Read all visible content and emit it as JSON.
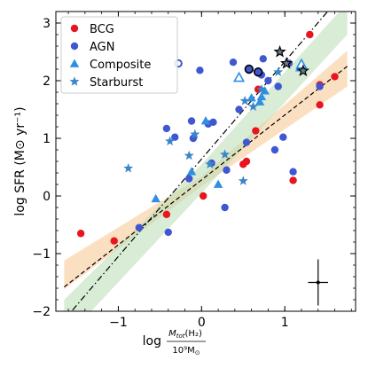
{
  "chart_data": {
    "type": "scatter",
    "xlabel_main": "log",
    "xlabel_num": "M",
    "xlabel_num_sub": "tot",
    "xlabel_num_paren": "(H₂)",
    "xlabel_den": "10⁹M",
    "xlabel_den_sub": "⊙",
    "ylabel": "log SFR (M⊙ yr⁻¹)",
    "xlim": [
      -1.75,
      1.85
    ],
    "ylim": [
      -2.0,
      3.2
    ],
    "xticks": [
      -1,
      0,
      1
    ],
    "yticks": [
      -2,
      -1,
      0,
      1,
      2,
      3
    ],
    "xtick_labels": [
      "−1",
      "0",
      "1"
    ],
    "ytick_labels": [
      "−2",
      "−1",
      "0",
      "1",
      "2",
      "3"
    ],
    "colors": {
      "bcg": "#e8141e",
      "agn": "#3f57d1",
      "composite": "#2f8fe3",
      "starburst": "#3b86c9",
      "fit_orange": "#f7c48e",
      "fit_green": "#b8dcb4"
    },
    "legend": [
      {
        "label": "BCG",
        "marker": "circle",
        "color": "#e8141e"
      },
      {
        "label": "AGN",
        "marker": "circle",
        "color": "#3f57d1"
      },
      {
        "label": "Composite",
        "marker": "triangle",
        "color": "#2f8fe3"
      },
      {
        "label": "Starburst",
        "marker": "star",
        "color": "#3b86c9"
      }
    ],
    "fits": [
      {
        "style": "dashed",
        "x": [
          -1.65,
          1.75
        ],
        "y": [
          -1.58,
          2.25
        ],
        "band_color": "#f7c48e",
        "band_lower": [
          -1.62,
          0.17,
          1.9
        ],
        "band_upper": [
          -1.12,
          0.34,
          2.52
        ],
        "band_x": [
          -1.65,
          0.0,
          1.75
        ]
      },
      {
        "style": "dashdot",
        "x": [
          -1.65,
          1.75
        ],
        "y": [
          -2.15,
          3.6
        ],
        "band_color": "#b8dcb4",
        "band_lower": [
          -2.5,
          0.05,
          2.8
        ],
        "band_upper": [
          -1.8,
          0.55,
          3.35
        ],
        "band_x": [
          -1.65,
          0.0,
          1.75
        ]
      }
    ],
    "series": [
      {
        "name": "BCG",
        "marker": "circle",
        "color": "#e8141e",
        "points": [
          [
            -1.45,
            -0.65
          ],
          [
            -1.05,
            -0.78
          ],
          [
            -0.42,
            -0.32
          ],
          [
            0.02,
            0.0
          ],
          [
            0.5,
            0.55
          ],
          [
            0.54,
            0.6
          ],
          [
            0.65,
            1.13
          ],
          [
            0.68,
            1.85
          ],
          [
            1.1,
            0.27
          ],
          [
            1.3,
            2.8
          ],
          [
            1.42,
            1.93
          ],
          [
            1.42,
            1.58
          ],
          [
            1.6,
            2.07
          ]
        ]
      },
      {
        "name": "AGN",
        "marker": "circle",
        "color": "#3f57d1",
        "points": [
          [
            -0.75,
            -0.55
          ],
          [
            -0.42,
            1.17
          ],
          [
            -0.4,
            -0.63
          ],
          [
            -0.32,
            1.02
          ],
          [
            -0.15,
            0.3
          ],
          [
            -0.12,
            1.3
          ],
          [
            -0.1,
            1.0
          ],
          [
            -0.02,
            2.18
          ],
          [
            0.08,
            1.25
          ],
          [
            0.12,
            0.57
          ],
          [
            0.14,
            1.28
          ],
          [
            0.28,
            -0.2
          ],
          [
            0.3,
            0.45
          ],
          [
            0.38,
            2.32
          ],
          [
            0.45,
            1.5
          ],
          [
            0.72,
            2.1
          ],
          [
            0.74,
            2.38
          ],
          [
            0.8,
            2.0
          ],
          [
            0.88,
            0.8
          ],
          [
            0.92,
            1.9
          ],
          [
            0.98,
            1.02
          ],
          [
            1.05,
            2.3
          ],
          [
            1.1,
            0.42
          ],
          [
            1.42,
            1.9
          ],
          [
            0.54,
            0.93
          ]
        ]
      },
      {
        "name": "Composite",
        "marker": "triangle",
        "color": "#2f8fe3",
        "points": [
          [
            -0.55,
            -0.05
          ],
          [
            -0.12,
            0.42
          ],
          [
            0.05,
            1.3
          ],
          [
            0.2,
            0.2
          ],
          [
            0.6,
            1.7
          ],
          [
            0.7,
            1.63
          ],
          [
            0.72,
            1.72
          ],
          [
            0.76,
            1.82
          ],
          [
            1.18,
            2.22
          ]
        ]
      },
      {
        "name": "Starburst",
        "marker": "star",
        "color": "#3b86c9",
        "points": [
          [
            -0.88,
            0.48
          ],
          [
            -0.38,
            0.95
          ],
          [
            -0.08,
            1.07
          ],
          [
            -0.15,
            0.7
          ],
          [
            0.1,
            0.55
          ],
          [
            0.28,
            0.72
          ],
          [
            0.5,
            0.26
          ],
          [
            0.52,
            1.65
          ],
          [
            0.62,
            1.55
          ],
          [
            0.72,
            1.85
          ],
          [
            0.92,
            2.15
          ]
        ]
      },
      {
        "name": "",
        "marker": "circle-open",
        "color": "#3f57d1",
        "points": [
          [
            -0.28,
            2.3
          ]
        ]
      },
      {
        "name": "",
        "marker": "triangle-open",
        "color": "#2f8fe3",
        "points": [
          [
            0.45,
            2.05
          ],
          [
            1.2,
            2.28
          ]
        ]
      },
      {
        "name": "",
        "marker": "circle-outlined",
        "color": "#3f57d1",
        "points": [
          [
            0.57,
            2.2
          ],
          [
            0.68,
            2.15
          ]
        ]
      },
      {
        "name": "",
        "marker": "star-outlined",
        "color": "#000000",
        "points": [
          [
            0.94,
            2.5
          ],
          [
            1.02,
            2.3
          ],
          [
            1.22,
            2.17
          ]
        ]
      }
    ],
    "error_bar": {
      "x": 1.4,
      "y": -1.5,
      "xerr": 0.12,
      "yerr": 0.4
    }
  }
}
